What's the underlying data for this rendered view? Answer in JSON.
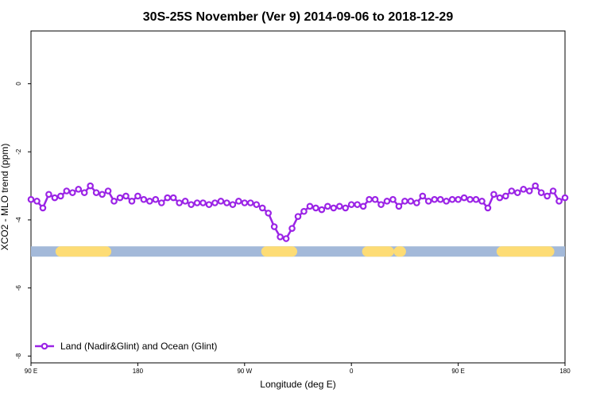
{
  "chart_data": {
    "type": "line",
    "title": "30S-25S November (Ver 9)   2014-09-06 to 2018-12-29",
    "xlabel": "Longitude (deg E)",
    "ylabel": "XCO2 - MLO trend (ppm)",
    "xlim": [
      -90,
      180
    ],
    "ylim": [
      -8.2,
      1.55
    ],
    "x_ticks": [
      {
        "value": -90,
        "label": "90 E"
      },
      {
        "value": -36,
        "label": "180"
      },
      {
        "value": 18,
        "label": "90 W"
      },
      {
        "value": 72,
        "label": "0"
      },
      {
        "value": 126,
        "label": "90 E"
      },
      {
        "value": 180,
        "label": "180"
      }
    ],
    "y_ticks": [
      0,
      -2,
      -4,
      -6,
      -8
    ],
    "grid": false,
    "legend_position": "bottom-left",
    "surface_bar": {
      "y": -4.93,
      "ocean_color": "#a3b9d9",
      "land_color": "#fddc75",
      "land_segments": [
        [
          -75,
          -52
        ],
        [
          29,
          42
        ],
        [
          80,
          91
        ],
        [
          96,
          97
        ],
        [
          148,
          172
        ]
      ]
    },
    "series": [
      {
        "name": "Land (Nadir&Glint) and Ocean (Glint)",
        "color": "#9b24e6",
        "x": [
          -90,
          -87,
          -84,
          -81,
          -78,
          -75,
          -72,
          -69,
          -66,
          -63,
          -60,
          -57,
          -54,
          -51,
          -48,
          -45,
          -42,
          -39,
          -36,
          -33,
          -30,
          -27,
          -24,
          -21,
          -18,
          -15,
          -12,
          -9,
          -6,
          -3,
          0,
          3,
          6,
          9,
          12,
          15,
          18,
          21,
          24,
          27,
          30,
          33,
          36,
          39,
          42,
          45,
          48,
          51,
          54,
          57,
          60,
          63,
          66,
          69,
          72,
          75,
          78,
          81,
          84,
          87,
          90,
          93,
          96,
          99,
          102,
          105,
          108,
          111,
          114,
          117,
          120,
          123,
          126,
          129,
          132,
          135,
          138,
          141,
          144,
          147,
          150,
          153,
          156,
          159,
          162,
          165,
          168,
          171,
          174,
          177,
          180
        ],
        "y": [
          -3.4,
          -3.45,
          -3.65,
          -3.25,
          -3.35,
          -3.3,
          -3.15,
          -3.2,
          -3.1,
          -3.2,
          -3.0,
          -3.2,
          -3.25,
          -3.15,
          -3.45,
          -3.35,
          -3.3,
          -3.45,
          -3.3,
          -3.4,
          -3.45,
          -3.4,
          -3.5,
          -3.35,
          -3.35,
          -3.5,
          -3.45,
          -3.55,
          -3.5,
          -3.5,
          -3.55,
          -3.5,
          -3.45,
          -3.5,
          -3.55,
          -3.45,
          -3.5,
          -3.5,
          -3.55,
          -3.65,
          -3.8,
          -4.2,
          -4.5,
          -4.55,
          -4.25,
          -3.9,
          -3.75,
          -3.6,
          -3.65,
          -3.7,
          -3.6,
          -3.65,
          -3.6,
          -3.65,
          -3.55,
          -3.55,
          -3.6,
          -3.4,
          -3.4,
          -3.55,
          -3.45,
          -3.4,
          -3.6,
          -3.45,
          -3.45,
          -3.5,
          -3.3,
          -3.45,
          -3.4,
          -3.4,
          -3.45,
          -3.4,
          -3.4,
          -3.35,
          -3.4,
          -3.4,
          -3.45,
          -3.65,
          -3.25,
          -3.35,
          -3.3,
          -3.15,
          -3.2,
          -3.1,
          -3.15,
          -3.0,
          -3.2,
          -3.3,
          -3.15,
          -3.45,
          -3.35
        ]
      }
    ]
  }
}
